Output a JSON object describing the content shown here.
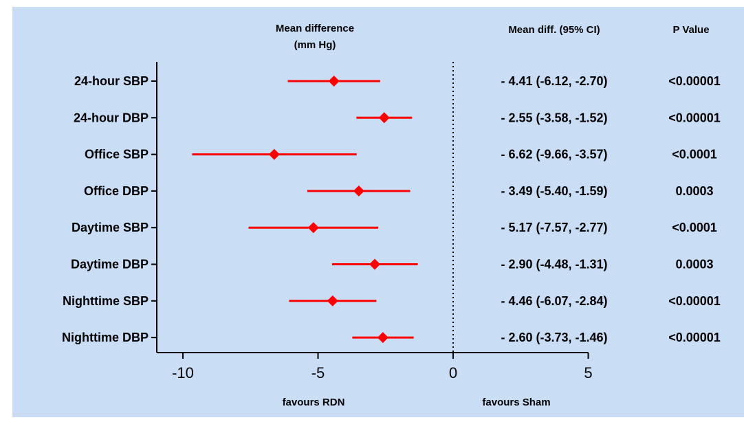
{
  "chart_data": {
    "type": "forest",
    "header_plot": "Mean difference\n(mm Hg)",
    "header_ci": "Mean diff. (95%  CI)",
    "header_p": "P Value",
    "xlabel_left": "favours RDN",
    "xlabel_right": "favours Sham",
    "xlim": [
      -11,
      5
    ],
    "xticks": [
      -10,
      -5,
      0,
      5
    ],
    "reference_line": 0,
    "marker_color": "#ff0000",
    "categories": [
      "24-hour SBP",
      "24-hour DBP",
      "Office SBP",
      "Office DBP",
      "Daytime SBP",
      "Daytime DBP",
      "Nighttime SBP",
      "Nighttime DBP"
    ],
    "mean": [
      -4.41,
      -2.55,
      -6.62,
      -3.49,
      -5.17,
      -2.9,
      -4.46,
      -2.6
    ],
    "ci_low": [
      -6.12,
      -3.58,
      -9.66,
      -5.4,
      -7.57,
      -4.48,
      -6.07,
      -3.73
    ],
    "ci_high": [
      -2.7,
      -1.52,
      -3.57,
      -1.59,
      -2.77,
      -1.31,
      -2.84,
      -1.46
    ],
    "ci_text": [
      "- 4.41 (-6.12, -2.70)",
      "- 2.55 (-3.58, -1.52)",
      "- 6.62 (-9.66, -3.57)",
      "- 3.49 (-5.40, -1.59)",
      "- 5.17 (-7.57, -2.77)",
      "- 2.90 (-4.48, -1.31)",
      "- 4.46 (-6.07, -2.84)",
      "- 2.60 (-3.73, -1.46)"
    ],
    "p_values": [
      "<0.00001",
      "<0.00001",
      "<0.0001",
      "0.0003",
      "<0.0001",
      "0.0003",
      "<0.00001",
      "<0.00001"
    ]
  }
}
